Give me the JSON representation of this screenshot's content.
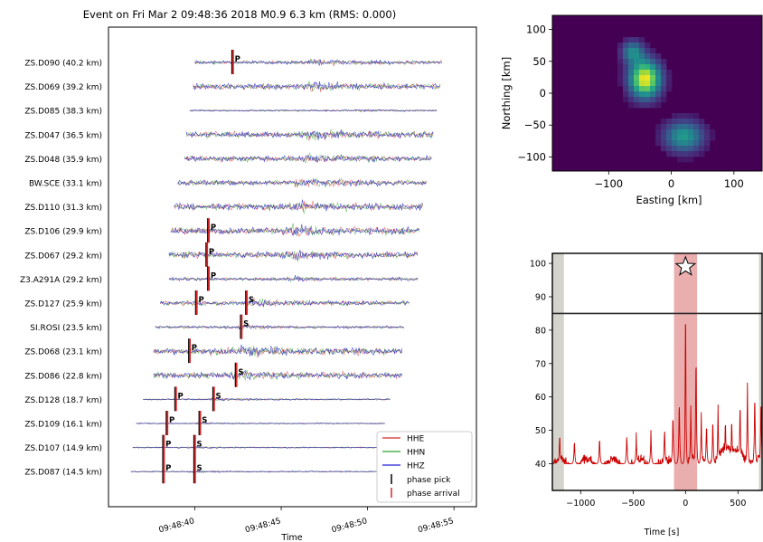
{
  "figure_title": "Event on Fri Mar  2 09:48:36 2018 M0.9 6.3 km (RMS: 0.000)",
  "colors": {
    "hhe": "#d62728",
    "hhn": "#2ca02c",
    "hhz": "#1f1fd6",
    "pick": "#000000",
    "arrival": "#d62728",
    "cc": "#cc0000",
    "band": "#e8a0a0",
    "edge": "#d4d4cc"
  },
  "chart_data": [
    {
      "type": "line",
      "title": "Event on Fri Mar  2 09:48:36 2018 M0.9 6.3 km (RMS: 0.000)",
      "xlabel": "Time",
      "ylabel": "",
      "x_tick_labels": [
        "09:48:40",
        "09:48:45",
        "09:48:50",
        "09:48:55"
      ],
      "x_ticks_s": [
        40,
        45,
        50,
        55
      ],
      "xlim_s": [
        35,
        56.3
      ],
      "legend": {
        "position": "lower-right",
        "entries": [
          "HHE",
          "HHN",
          "HHZ",
          "phase pick",
          "phase arrival"
        ]
      },
      "stations": [
        {
          "label": "ZS.D090 (40.2 km)",
          "start": 40.0,
          "end": 54.3,
          "amp": 0.35,
          "burst": 47.3,
          "picks": [
            {
              "phase": "P",
              "t": 42.2
            }
          ]
        },
        {
          "label": "ZS.D069 (39.2 km)",
          "start": 39.9,
          "end": 54.2,
          "amp": 0.55,
          "burst": 47.2,
          "picks": []
        },
        {
          "label": "ZS.D085 (38.3 km)",
          "start": 39.7,
          "end": 54.0,
          "amp": 0.15,
          "burst": 49.8,
          "picks": []
        },
        {
          "label": "ZS.D047 (36.5 km)",
          "start": 39.5,
          "end": 53.8,
          "amp": 0.6,
          "burst": 46.8,
          "picks": []
        },
        {
          "label": "ZS.D048 (35.9 km)",
          "start": 39.4,
          "end": 53.7,
          "amp": 0.55,
          "burst": 46.7,
          "picks": []
        },
        {
          "label": "BW.SCE (33.1 km)",
          "start": 39.0,
          "end": 53.4,
          "amp": 0.5,
          "burst": 46.3,
          "picks": []
        },
        {
          "label": "ZS.D110 (31.3 km)",
          "start": 38.8,
          "end": 53.2,
          "amp": 0.65,
          "burst": 46.1,
          "picks": []
        },
        {
          "label": "ZS.D106 (29.9 km)",
          "start": 38.6,
          "end": 53.0,
          "amp": 0.65,
          "burst": 45.9,
          "picks": [
            {
              "phase": "P",
              "t": 40.8
            }
          ]
        },
        {
          "label": "ZS.D067 (29.2 km)",
          "start": 38.5,
          "end": 52.9,
          "amp": 0.6,
          "burst": 45.8,
          "picks": [
            {
              "phase": "P",
              "t": 40.7
            }
          ]
        },
        {
          "label": "Z3.A291A (29.2 km)",
          "start": 38.5,
          "end": 52.9,
          "amp": 0.3,
          "burst": 45.8,
          "picks": [
            {
              "phase": "P",
              "t": 40.8
            }
          ]
        },
        {
          "label": "ZS.D127 (25.9 km)",
          "start": 38.0,
          "end": 52.4,
          "amp": 0.45,
          "burst": 43.5,
          "picks": [
            {
              "phase": "P",
              "t": 40.1
            },
            {
              "phase": "S",
              "t": 43.0
            }
          ]
        },
        {
          "label": "SI.ROSI (23.5 km)",
          "start": 37.7,
          "end": 52.1,
          "amp": 0.25,
          "burst": 42.9,
          "picks": [
            {
              "phase": "S",
              "t": 42.7
            }
          ]
        },
        {
          "label": "ZS.D068 (23.1 km)",
          "start": 37.6,
          "end": 52.0,
          "amp": 0.65,
          "burst": 43.0,
          "picks": [
            {
              "phase": "P",
              "t": 39.7
            }
          ]
        },
        {
          "label": "ZS.D086 (22.8 km)",
          "start": 37.6,
          "end": 52.0,
          "amp": 0.6,
          "burst": 42.6,
          "picks": [
            {
              "phase": "S",
              "t": 42.4
            }
          ]
        },
        {
          "label": "ZS.D128 (18.7 km)",
          "start": 37.0,
          "end": 51.3,
          "amp": 0.15,
          "burst": 41.4,
          "picks": [
            {
              "phase": "P",
              "t": 38.9
            },
            {
              "phase": "S",
              "t": 41.1
            }
          ]
        },
        {
          "label": "ZS.D109 (16.1 km)",
          "start": 36.6,
          "end": 51.0,
          "amp": 0.12,
          "burst": 40.6,
          "picks": [
            {
              "phase": "P",
              "t": 38.4
            },
            {
              "phase": "S",
              "t": 40.3
            }
          ]
        },
        {
          "label": "ZS.D107 (14.9 km)",
          "start": 36.4,
          "end": 50.8,
          "amp": 0.12,
          "burst": 40.2,
          "picks": [
            {
              "phase": "P",
              "t": 38.2
            },
            {
              "phase": "S",
              "t": 40.0
            }
          ]
        },
        {
          "label": "ZS.D087 (14.5 km)",
          "start": 36.3,
          "end": 50.7,
          "amp": 0.12,
          "burst": 40.2,
          "picks": [
            {
              "phase": "P",
              "t": 38.2
            },
            {
              "phase": "S",
              "t": 40.0
            }
          ]
        }
      ]
    },
    {
      "type": "heatmap",
      "title": "",
      "xlabel": "Easting [km]",
      "ylabel": "Northing [km]",
      "xlim": [
        -190,
        145
      ],
      "ylim": [
        -122,
        122
      ],
      "x_ticks": [
        -100,
        0,
        100
      ],
      "x_tick_labels": [
        "−100",
        "0",
        "100"
      ],
      "y_ticks": [
        100,
        50,
        0,
        -50,
        -100
      ],
      "y_tick_labels": [
        "100",
        "50",
        "0",
        "−50",
        "−100"
      ],
      "colormap": "viridis",
      "blobs": [
        {
          "x": -42,
          "y": 22,
          "sx": 22,
          "sy": 26,
          "peak": 1.0
        },
        {
          "x": -62,
          "y": 65,
          "sx": 16,
          "sy": 16,
          "peak": 0.45
        },
        {
          "x": 20,
          "y": -68,
          "sx": 28,
          "sy": 22,
          "peak": 0.55
        }
      ]
    },
    {
      "type": "line",
      "title": "",
      "xlabel": "Time [s]",
      "ylabel": "",
      "xlim": [
        -1270,
        730
      ],
      "ylim": [
        32,
        103
      ],
      "x_ticks": [
        -1000,
        -500,
        0,
        500
      ],
      "x_tick_labels": [
        "−1000",
        "−500",
        "0",
        "500"
      ],
      "y_ticks": [
        100,
        90,
        80,
        70,
        60,
        50,
        40
      ],
      "y_tick_labels": [
        "100",
        "90",
        "80",
        "70",
        "60",
        "50",
        "40"
      ],
      "threshold": 85,
      "highlight_band": [
        -110,
        110
      ],
      "edge_bands": [
        [
          -1270,
          -1160
        ],
        [
          700,
          730
        ]
      ],
      "peak_marker": {
        "x": 0,
        "y": 99
      },
      "baseline": 40,
      "peaks": [
        {
          "x": -1200,
          "y": 50
        },
        {
          "x": -1060,
          "y": 48
        },
        {
          "x": -820,
          "y": 49
        },
        {
          "x": -560,
          "y": 50
        },
        {
          "x": -470,
          "y": 49
        },
        {
          "x": -330,
          "y": 50
        },
        {
          "x": -200,
          "y": 53
        },
        {
          "x": -120,
          "y": 57
        },
        {
          "x": -60,
          "y": 62
        },
        {
          "x": 0,
          "y": 99
        },
        {
          "x": 50,
          "y": 58
        },
        {
          "x": 100,
          "y": 78
        },
        {
          "x": 150,
          "y": 55
        },
        {
          "x": 200,
          "y": 54
        },
        {
          "x": 260,
          "y": 55
        },
        {
          "x": 310,
          "y": 57
        },
        {
          "x": 380,
          "y": 55
        },
        {
          "x": 440,
          "y": 56
        },
        {
          "x": 520,
          "y": 61
        },
        {
          "x": 590,
          "y": 64
        },
        {
          "x": 660,
          "y": 64
        },
        {
          "x": 720,
          "y": 62
        }
      ]
    }
  ]
}
